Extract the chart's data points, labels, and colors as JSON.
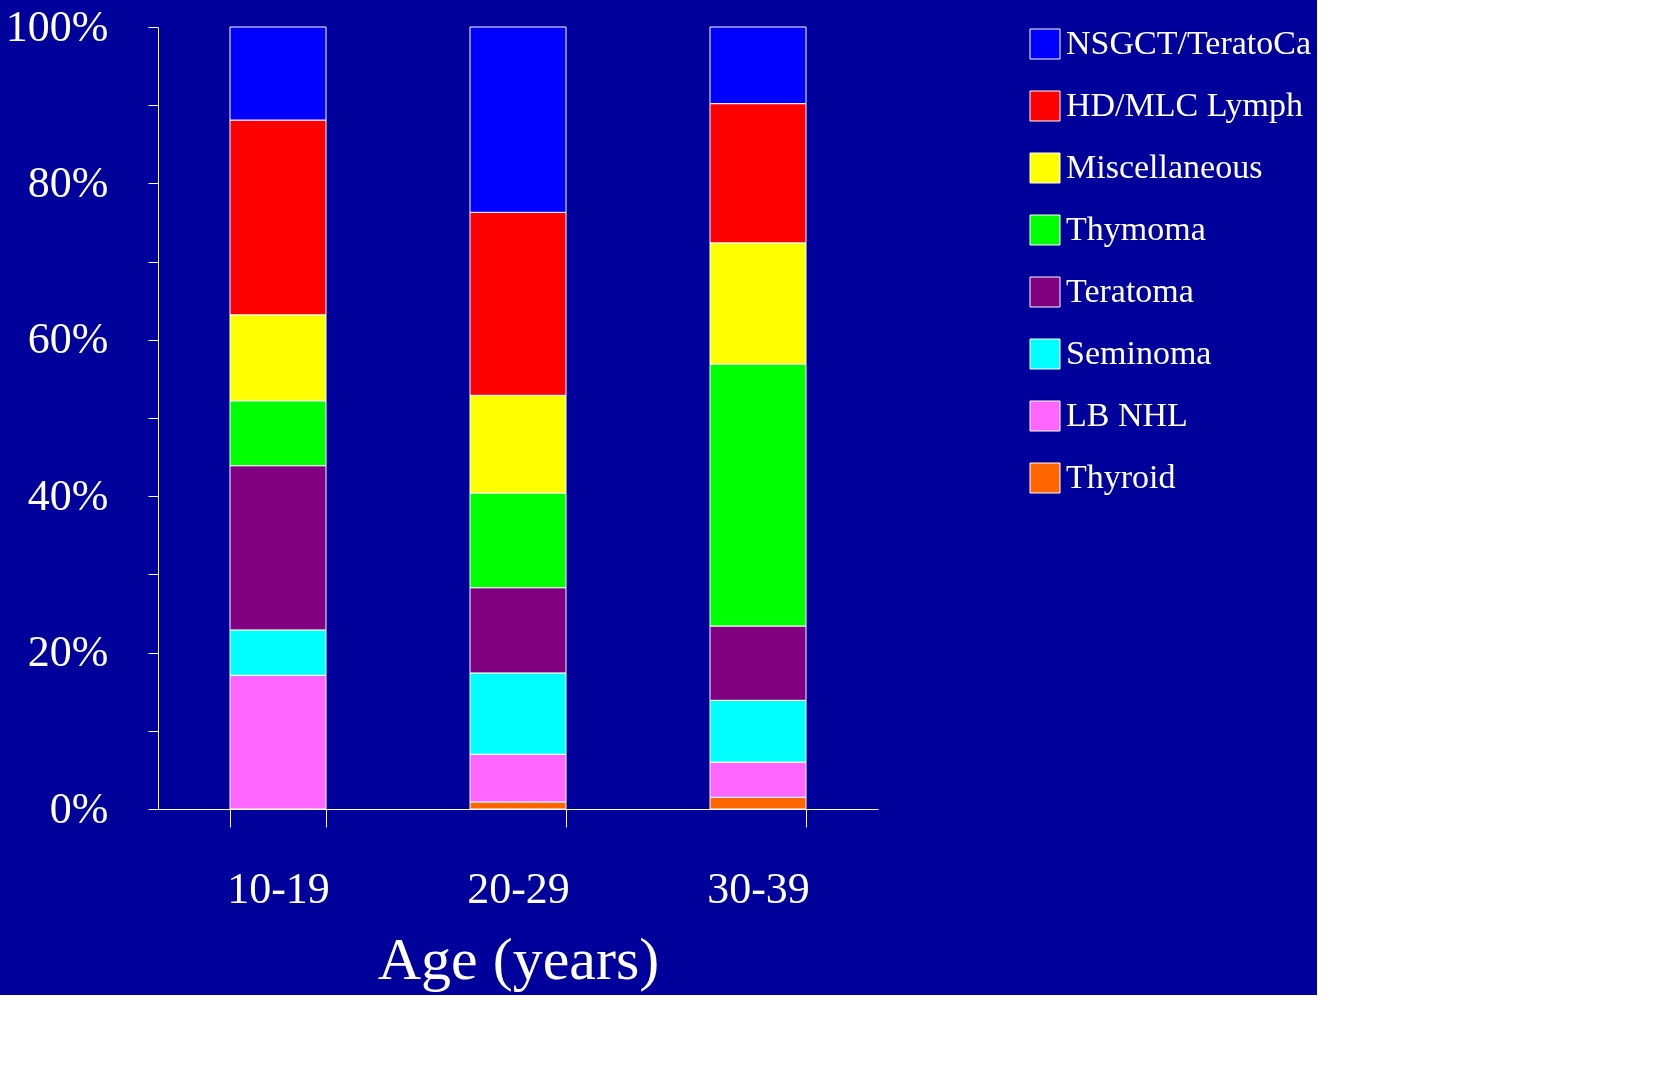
{
  "chart_data": {
    "type": "bar",
    "stacked": true,
    "xlabel": "Age    (years)",
    "categories": [
      "10-19",
      "20-29",
      "30-39"
    ],
    "series": [
      {
        "name": "Thyroid",
        "color": "#ff6600",
        "values": [
          0,
          0.9,
          1.5
        ]
      },
      {
        "name": "LB NHL",
        "color": "#ff66ff",
        "values": [
          17.1,
          6.1,
          4.5
        ]
      },
      {
        "name": "Seminoma",
        "color": "#00ffff",
        "values": [
          5.8,
          10.4,
          7.9
        ]
      },
      {
        "name": "Teratoma",
        "color": "#800080",
        "values": [
          21.0,
          10.9,
          9.5
        ]
      },
      {
        "name": "Thymoma",
        "color": "#00ff00",
        "values": [
          8.3,
          12.1,
          33.5
        ]
      },
      {
        "name": "Miscellaneous",
        "color": "#ffff00",
        "values": [
          11.0,
          12.5,
          15.5
        ]
      },
      {
        "name": "HD/MLC Lymph",
        "color": "#ff0000",
        "values": [
          24.9,
          23.4,
          17.8
        ]
      },
      {
        "name": "NSGCT/TeratoCa",
        "color": "#0000ff",
        "values": [
          11.9,
          23.7,
          9.8
        ]
      }
    ],
    "ylim": [
      0,
      100
    ],
    "yticks": [
      {
        "value": 0,
        "label": "0%"
      },
      {
        "value": 10,
        "label": null
      },
      {
        "value": 20,
        "label": "20%"
      },
      {
        "value": 30,
        "label": null
      },
      {
        "value": 40,
        "label": "40%"
      },
      {
        "value": 50,
        "label": null
      },
      {
        "value": 60,
        "label": "60%"
      },
      {
        "value": 70,
        "label": null
      },
      {
        "value": 80,
        "label": "80%"
      },
      {
        "value": 90,
        "label": null
      },
      {
        "value": 100,
        "label": "100%"
      }
    ],
    "legend": "right",
    "grid": false
  }
}
